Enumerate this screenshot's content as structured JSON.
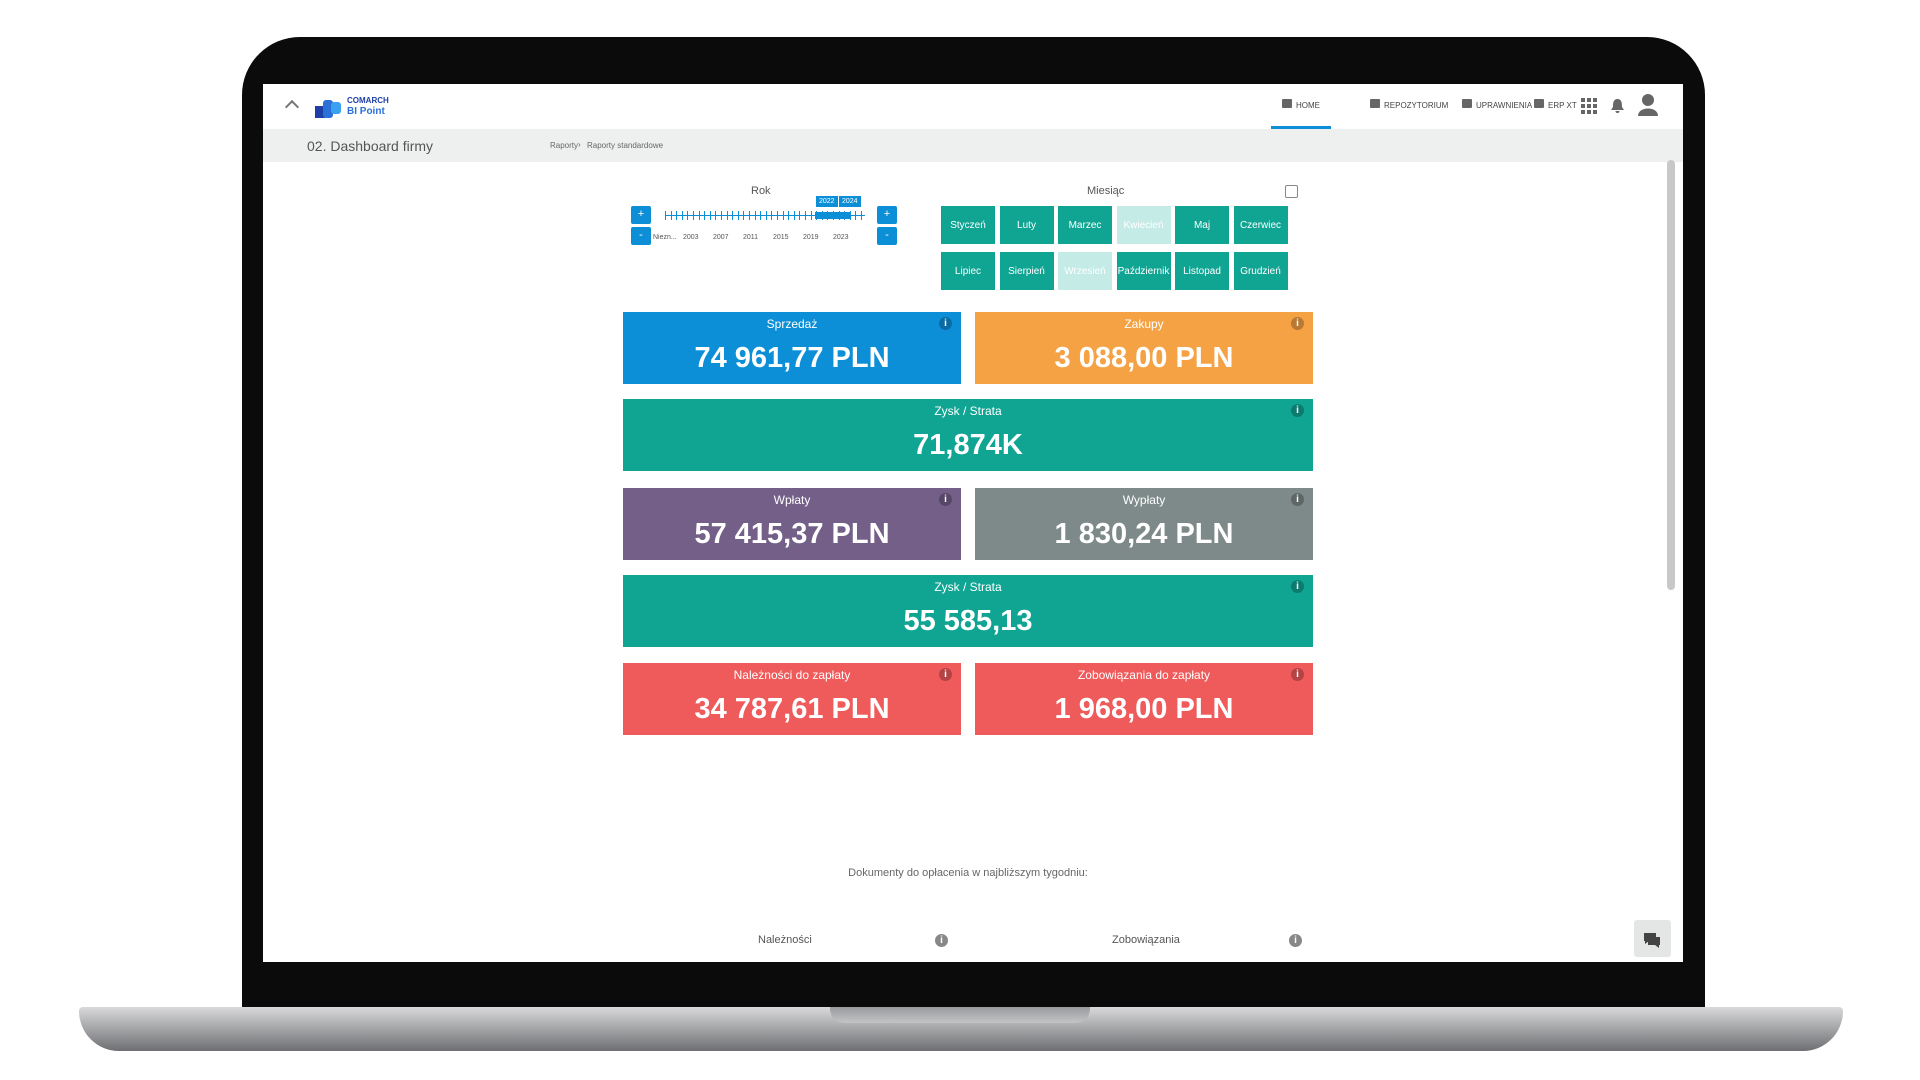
{
  "header": {
    "logo_top": "COMARCH",
    "logo_bottom": "BI Point",
    "nav": [
      "HOME",
      "REPOZYTORIUM",
      "UPRAWNIENIA",
      "ERP XT"
    ]
  },
  "page": {
    "title": "02. Dashboard firmy",
    "breadcrumb": [
      "Raporty",
      "Raporty standardowe"
    ]
  },
  "filters": {
    "year": {
      "label": "Rok",
      "plus": "+",
      "minus": "-",
      "axis_labels": [
        "Niezn...",
        "2003",
        "2007",
        "2011",
        "2015",
        "2019",
        "2023"
      ],
      "selected": [
        "2022",
        "2024"
      ]
    },
    "month": {
      "label": "Miesiąc",
      "months": [
        {
          "name": "Styczeń",
          "selected": true
        },
        {
          "name": "Luty",
          "selected": true
        },
        {
          "name": "Marzec",
          "selected": true
        },
        {
          "name": "Kwiecień",
          "selected": false
        },
        {
          "name": "Maj",
          "selected": true
        },
        {
          "name": "Czerwiec",
          "selected": true
        },
        {
          "name": "Lipiec",
          "selected": true
        },
        {
          "name": "Sierpień",
          "selected": true
        },
        {
          "name": "Wrzesień",
          "selected": false
        },
        {
          "name": "Październik",
          "selected": true
        },
        {
          "name": "Listopad",
          "selected": true
        },
        {
          "name": "Grudzień",
          "selected": true
        }
      ]
    }
  },
  "cards": [
    {
      "label": "Sprzedaż",
      "value": "74 961,77 PLN",
      "color": "#0d8fd8",
      "wide": false
    },
    {
      "label": "Zakupy",
      "value": "3 088,00 PLN",
      "color": "#f5a244",
      "wide": false
    },
    {
      "label": "Zysk / Strata",
      "value": "71,874K",
      "color": "#10a593",
      "wide": true
    },
    {
      "label": "Wpłaty",
      "value": "57 415,37 PLN",
      "color": "#735f88",
      "wide": false
    },
    {
      "label": "Wypłaty",
      "value": "1 830,24 PLN",
      "color": "#7e8a89",
      "wide": false
    },
    {
      "label": "Zysk / Strata",
      "value": "55 585,13",
      "color": "#10a593",
      "wide": true
    },
    {
      "label": "Należności do zapłaty",
      "value": "34 787,61 PLN",
      "color": "#ef5a5b",
      "wide": false
    },
    {
      "label": "Zobowiązania do zapłaty",
      "value": "1 968,00 PLN",
      "color": "#ef5a5b",
      "wide": false
    }
  ],
  "bottom": {
    "title": "Dokumenty do opłacenia w najbliższym tygodniu:",
    "columns": [
      "Należności",
      "Zobowiązania"
    ]
  }
}
